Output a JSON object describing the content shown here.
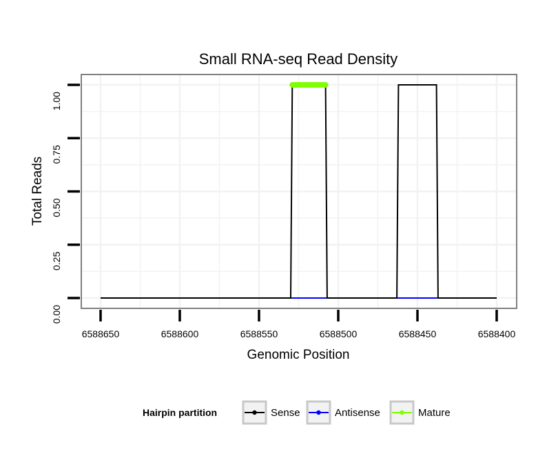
{
  "chart_data": {
    "type": "line",
    "title": "Small RNA-seq Read Density",
    "xlabel": "Genomic Position",
    "ylabel": "Total Reads",
    "xlim": [
      6588650,
      6588400
    ],
    "ylim": [
      0,
      1
    ],
    "x_ticks": [
      "6588650",
      "6588600",
      "6588550",
      "6588500",
      "6588450",
      "6588400"
    ],
    "y_ticks": [
      "0.00",
      "0.25",
      "0.50",
      "0.75",
      "1.00"
    ],
    "grid": true,
    "legend_position": "bottom",
    "legend": {
      "title": "Hairpin partition",
      "entries": [
        {
          "label": "Sense",
          "color": "#000000"
        },
        {
          "label": "Antisense",
          "color": "#0000ff"
        },
        {
          "label": "Mature",
          "color": "#7fff00"
        }
      ]
    },
    "series": [
      {
        "name": "Sense",
        "color": "#000000",
        "x": [
          6588650,
          6588530,
          6588529,
          6588508,
          6588507,
          6588463,
          6588462,
          6588438,
          6588437,
          6588400
        ],
        "y": [
          0,
          0,
          1,
          1,
          0,
          0,
          1,
          1,
          0,
          0
        ]
      },
      {
        "name": "Antisense",
        "color": "#0000ff",
        "x": [
          6588530,
          6588507,
          6588463,
          6588437
        ],
        "y": [
          0,
          0,
          0,
          0
        ],
        "segments": [
          [
            0,
            1
          ],
          [
            2,
            3
          ]
        ]
      },
      {
        "name": "Mature",
        "color": "#7fff00",
        "x": [
          6588529,
          6588508
        ],
        "y": [
          1,
          1
        ]
      }
    ]
  }
}
